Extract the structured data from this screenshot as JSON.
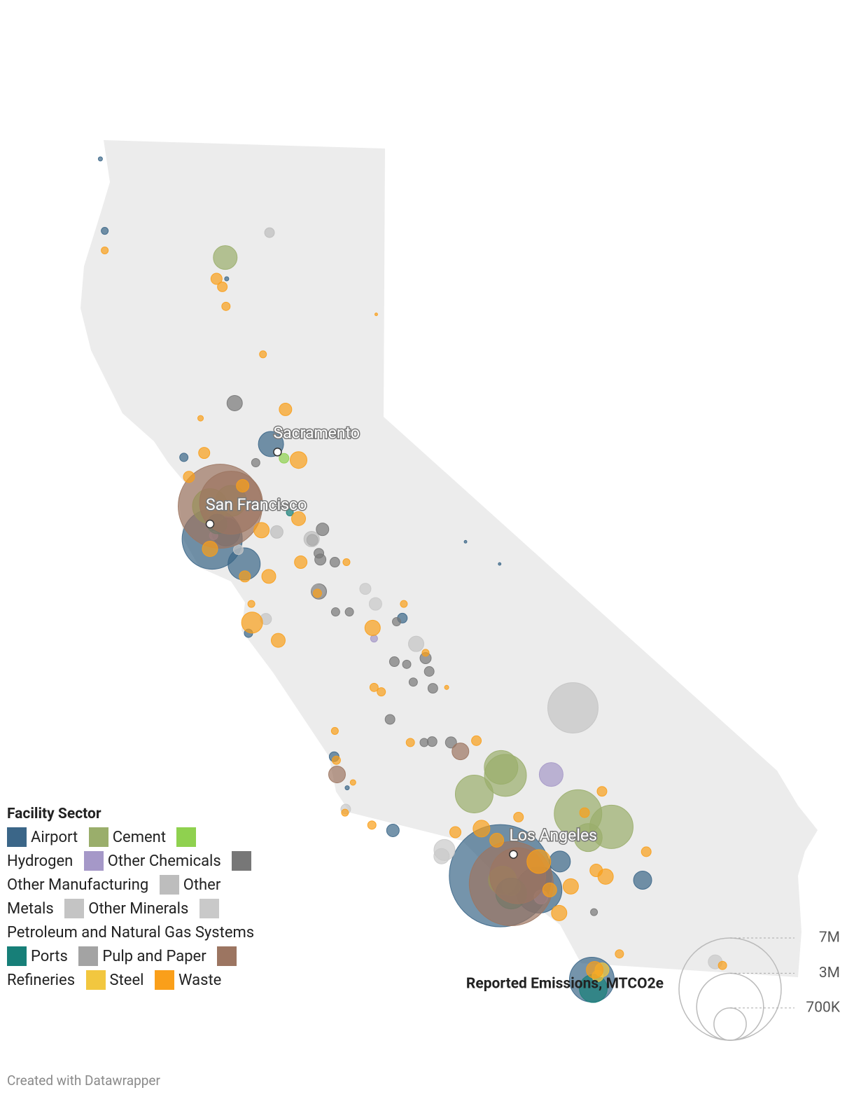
{
  "chart_data": {
    "type": "bubble-map",
    "legend_title": "Facility Sector",
    "cities": [
      {
        "name": "Sacramento",
        "lon": -121.49,
        "lat": 38.58
      },
      {
        "name": "San Francisco",
        "lon": -122.42,
        "lat": 37.77
      },
      {
        "name": "Los Angeles",
        "lon": -118.24,
        "lat": 34.05
      }
    ],
    "size_legend": {
      "title": "Reported Emissions, MTCO2e",
      "ticks": [
        {
          "value": 7000000,
          "label": "7M"
        },
        {
          "value": 3000000,
          "label": "3M"
        },
        {
          "value": 700000,
          "label": "700K"
        }
      ]
    },
    "series": [
      {
        "name": "Airport",
        "color": "#3b6688",
        "lon": [
          -123.93,
          -123.87,
          -122.19,
          -121.58,
          -122.78,
          -122.39,
          -122.2,
          -121.95,
          -121.89,
          -118.9,
          -118.43,
          -119.77,
          -120.71,
          -119.9,
          -118.42,
          -117.89,
          -117.6,
          -116.46,
          -117.16,
          -120.53
        ],
        "lat": [
          41.88,
          41.07,
          40.53,
          38.67,
          38.52,
          37.6,
          37.68,
          37.32,
          36.54,
          37.57,
          37.32,
          36.71,
          35.15,
          34.32,
          33.81,
          33.65,
          33.97,
          33.76,
          32.64,
          34.8
        ],
        "values": [
          12000,
          33000,
          12000,
          425000,
          47000,
          2430000,
          525000,
          695000,
          47000,
          5000,
          5000,
          64000,
          64000,
          106000,
          7000000,
          1430000,
          296000,
          222000,
          1345000,
          12000
        ]
      },
      {
        "name": "Cement",
        "color": "#9aae6b",
        "lon": [
          -122.21,
          -118.41,
          -118.35,
          -118.78,
          -117.35,
          -116.89,
          -117.21
        ],
        "lat": [
          40.77,
          35.03,
          34.94,
          34.73,
          34.51,
          34.36,
          34.24
        ],
        "values": [
          380000,
          757000,
          1180000,
          958000,
          1518000,
          1262000,
          525000
        ]
      },
      {
        "name": "Hydrogen",
        "color": "#8fd14f",
        "lon": [
          -121.4,
          -122.42,
          -122.13,
          -118.39,
          -118.27
        ],
        "lat": [
          38.51,
          37.97,
          38.03,
          33.76,
          33.69
        ],
        "values": [
          64000,
          821000,
          636000,
          525000,
          222000
        ]
      },
      {
        "name": "Other Chemicals",
        "color": "#a598c8",
        "lon": [
          -117.72,
          -120.16,
          -122.37,
          -117.86
        ],
        "lat": [
          34.95,
          36.48,
          37.64,
          33.57
        ],
        "values": [
          380000,
          33000,
          47000,
          131000
        ]
      },
      {
        "name": "Other Manufacturing",
        "color": "#777777",
        "lon": [
          -122.08,
          -121.79,
          -120.87,
          -121.01,
          -120.92,
          -120.9,
          -120.7,
          -120.92,
          -120.69,
          -120.5,
          -119.85,
          -119.88,
          -119.71,
          -119.45,
          -119.4,
          -119.62,
          -119.35,
          -119.94,
          -119.47,
          -119.36,
          -119.1,
          -117.13
        ],
        "lat": [
          39.13,
          38.46,
          37.71,
          37.59,
          37.44,
          37.37,
          37.34,
          37.01,
          36.78,
          36.78,
          36.67,
          36.22,
          36.19,
          36.26,
          36.11,
          35.99,
          35.92,
          35.57,
          35.31,
          35.32,
          35.31,
          33.4
        ],
        "values": [
          159000,
          47000,
          106000,
          84000,
          64000,
          84000,
          64000,
          159000,
          47000,
          47000,
          47000,
          64000,
          47000,
          84000,
          64000,
          47000,
          64000,
          64000,
          47000,
          64000,
          84000,
          33000
        ]
      },
      {
        "name": "Other Metals",
        "color": "#bdbdbd",
        "lon": [
          -121.6,
          -121.5,
          -121.02
        ],
        "lat": [
          41.05,
          37.68,
          37.6
        ],
        "values": [
          64000,
          106000,
          159000
        ]
      },
      {
        "name": "Other Minerals",
        "color": "#c4c4c4",
        "lon": [
          -117.42,
          -119.58,
          -121.65
        ],
        "lat": [
          35.7,
          36.42,
          36.7
        ],
        "values": [
          1700000,
          159000,
          84000
        ]
      },
      {
        "name": "Petroleum and Natural Gas Systems",
        "color": "#c9c9c9",
        "lon": [
          -120.14,
          -120.28,
          -119.19,
          -119.23,
          -115.46,
          -120.55,
          -122.03
        ],
        "lat": [
          36.87,
          37.04,
          34.1,
          34.03,
          32.84,
          34.56,
          37.48
        ],
        "values": [
          106000,
          84000,
          296000,
          159000,
          131000,
          64000,
          64000
        ]
      },
      {
        "name": "Ports",
        "color": "#177f78",
        "lon": [
          -122.32,
          -118.27,
          -117.14,
          -121.32
        ],
        "lat": [
          37.77,
          33.61,
          32.54,
          37.9
        ],
        "values": [
          257000,
          636000,
          525000,
          33000
        ]
      },
      {
        "name": "Pulp and Paper",
        "color": "#a3a3a3",
        "lon": [
          -120.93
        ],
        "lat": [
          37.02
        ],
        "values": [
          106000
        ]
      },
      {
        "name": "Refineries",
        "color": "#9c7561",
        "lon": [
          -122.28,
          -122.13,
          -118.27,
          -118.18,
          -118.97,
          -120.67
        ],
        "lat": [
          37.97,
          38.01,
          33.72,
          33.81,
          35.21,
          34.95
        ],
        "values": [
          4730000,
          2660000,
          4730000,
          2100000,
          189000,
          189000
        ]
      },
      {
        "name": "Steel",
        "color": "#f2c73f",
        "lon": [
          -117.08,
          -117.02
        ],
        "lat": [
          32.68,
          32.75
        ],
        "values": [
          84000,
          131000
        ]
      },
      {
        "name": "Waste",
        "color": "#fa9f1a",
        "lon": [
          -123.87,
          -122.33,
          -122.25,
          -122.2,
          -120.13,
          -121.69,
          -121.38,
          -122.55,
          -122.5,
          -121.2,
          -122.71,
          -121.97,
          -121.2,
          -121.71,
          -122.42,
          -121.94,
          -121.61,
          -121.17,
          -120.54,
          -120.94,
          -119.75,
          -121.85,
          -121.84,
          -121.48,
          -120.18,
          -120.16,
          -120.06,
          -119.16,
          -119.45,
          -120.7,
          -119.66,
          -118.75,
          -120.68,
          -120.45,
          -120.56,
          -120.19,
          -119.04,
          -118.68,
          -118.17,
          -117.02,
          -117.26,
          -117.89,
          -117.45,
          -117.74,
          -117.61,
          -117.1,
          -116.97,
          -116.41,
          -116.78,
          -117.12,
          -115.36,
          -118.47
        ],
        "lat": [
          40.85,
          40.53,
          40.44,
          40.22,
          40.13,
          39.68,
          39.06,
          38.96,
          38.57,
          38.49,
          38.3,
          38.2,
          37.83,
          37.7,
          37.49,
          37.18,
          37.18,
          37.34,
          37.34,
          36.99,
          36.87,
          36.87,
          36.66,
          36.46,
          36.6,
          35.93,
          35.88,
          35.93,
          36.32,
          35.44,
          35.31,
          35.33,
          35.11,
          34.86,
          34.52,
          34.38,
          34.3,
          34.34,
          34.47,
          34.76,
          34.52,
          33.97,
          33.69,
          33.65,
          33.39,
          33.87,
          33.8,
          34.08,
          32.93,
          32.75,
          32.8,
          34.21
        ],
        "values": [
          33000,
          84000,
          64000,
          47000,
          5000,
          33000,
          106000,
          21000,
          84000,
          189000,
          84000,
          106000,
          131000,
          159000,
          159000,
          84000,
          131000,
          106000,
          33000,
          47000,
          33000,
          33000,
          296000,
          131000,
          159000,
          47000,
          47000,
          12000,
          33000,
          33000,
          47000,
          64000,
          47000,
          21000,
          33000,
          47000,
          84000,
          189000,
          64000,
          64000,
          64000,
          380000,
          159000,
          131000,
          159000,
          106000,
          159000,
          64000,
          47000,
          189000,
          47000,
          131000
        ]
      }
    ]
  },
  "footer": "Created with Datawrapper"
}
